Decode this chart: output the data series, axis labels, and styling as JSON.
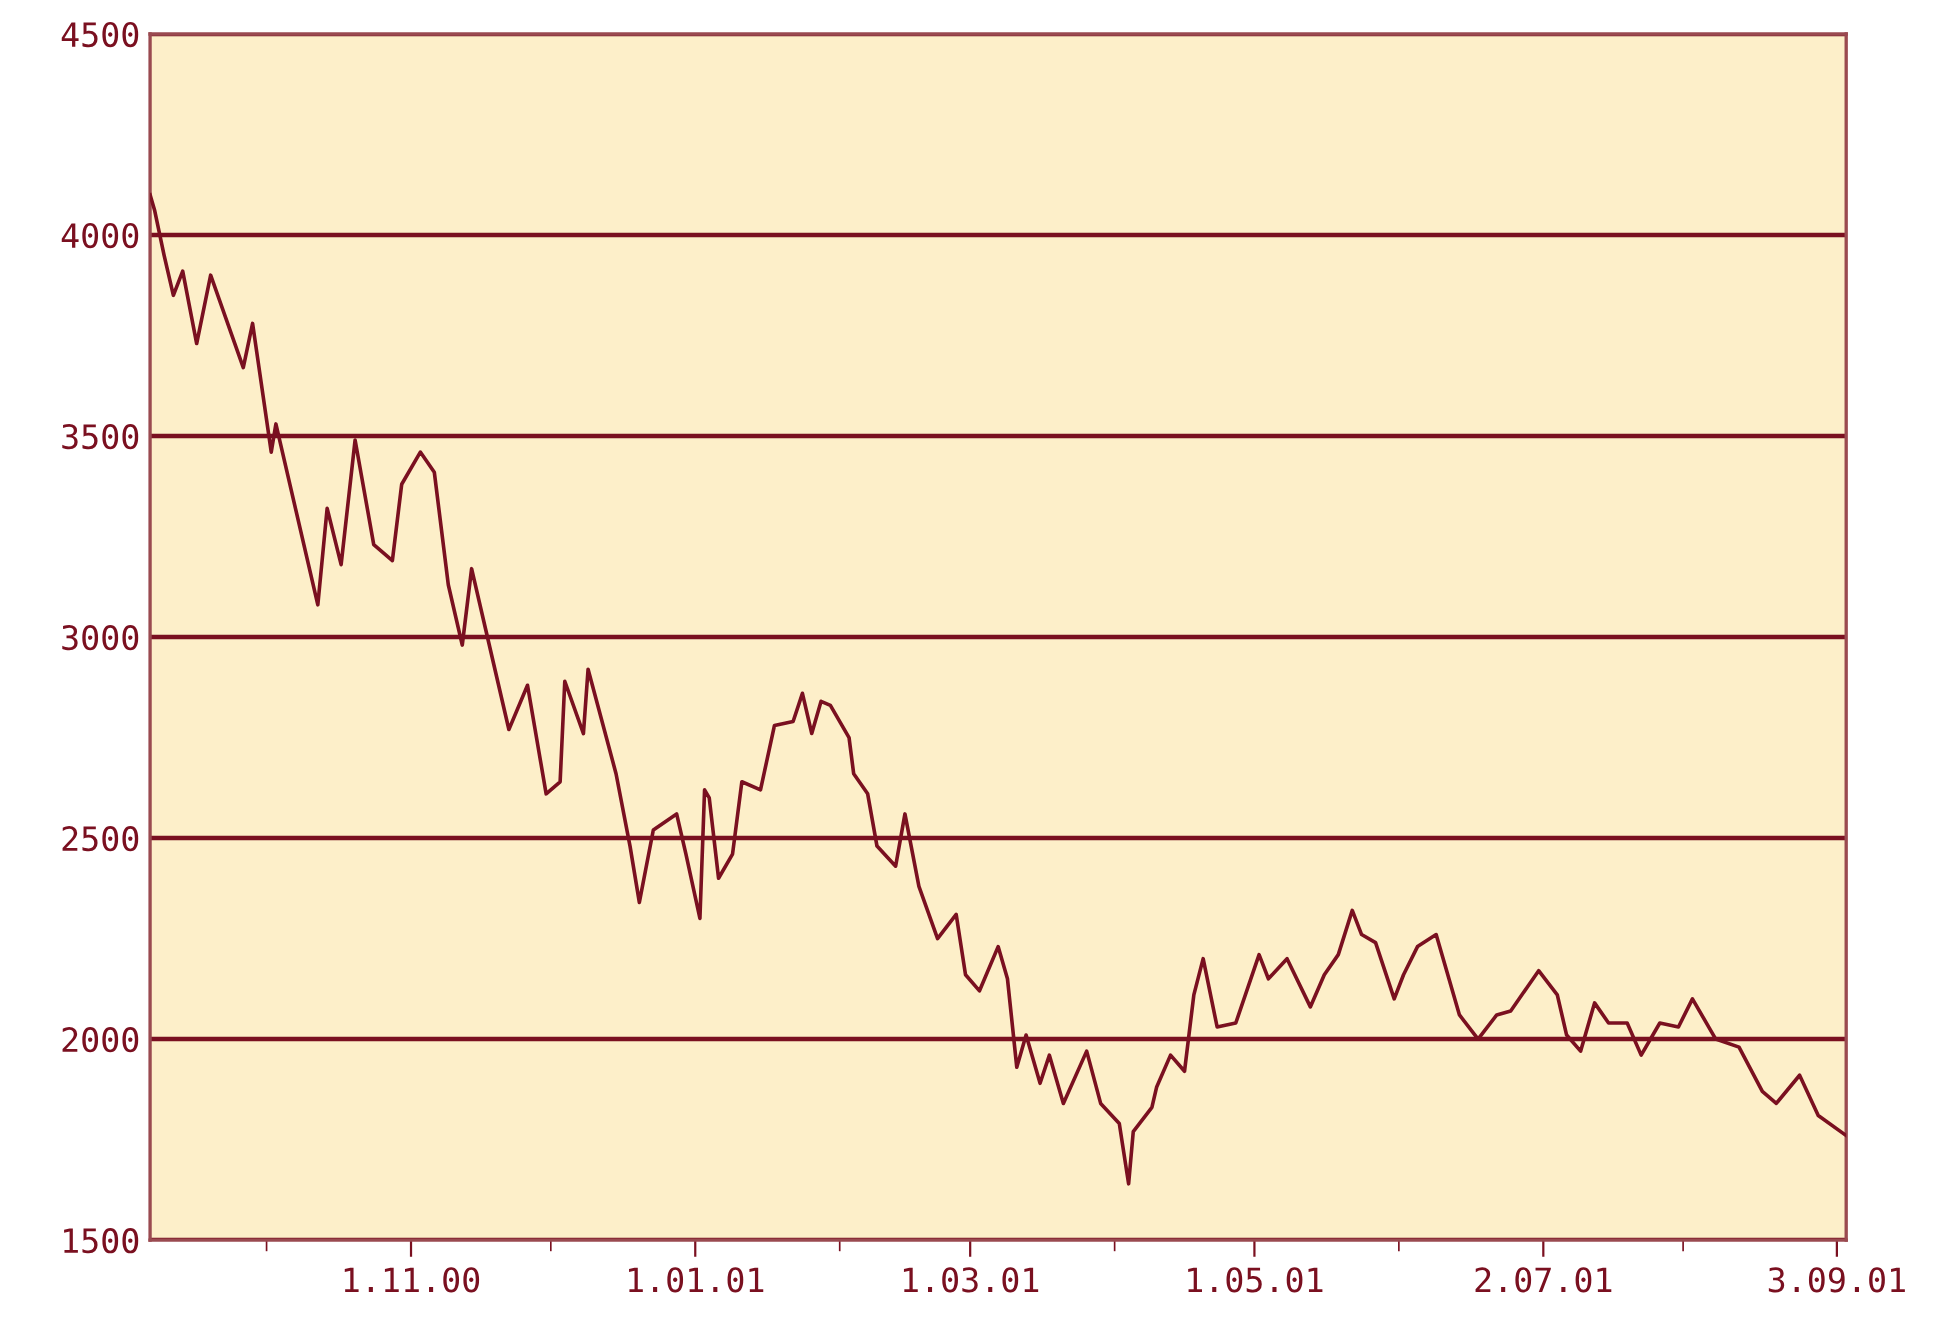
{
  "chart_data": {
    "type": "line",
    "x": [
      "2000-09-06",
      "2000-09-07",
      "2000-09-09",
      "2000-09-11",
      "2000-09-13",
      "2000-09-16",
      "2000-09-19",
      "2000-09-26",
      "2000-09-28",
      "2000-10-02",
      "2000-10-03",
      "2000-10-12",
      "2000-10-14",
      "2000-10-17",
      "2000-10-20",
      "2000-10-24",
      "2000-10-28",
      "2000-10-30",
      "2000-11-03",
      "2000-11-06",
      "2000-11-09",
      "2000-11-12",
      "2000-11-14",
      "2000-11-17",
      "2000-11-22",
      "2000-11-26",
      "2000-11-30",
      "2000-12-03",
      "2000-12-04",
      "2000-12-08",
      "2000-12-09",
      "2000-12-15",
      "2000-12-18",
      "2000-12-20",
      "2000-12-23",
      "2000-12-28",
      "2000-12-30",
      "2001-01-02",
      "2001-01-03",
      "2001-01-04",
      "2001-01-06",
      "2001-01-09",
      "2001-01-11",
      "2001-01-15",
      "2001-01-18",
      "2001-01-22",
      "2001-01-24",
      "2001-01-26",
      "2001-01-28",
      "2001-01-30",
      "2001-02-03",
      "2001-02-04",
      "2001-02-07",
      "2001-02-09",
      "2001-02-13",
      "2001-02-15",
      "2001-02-18",
      "2001-02-22",
      "2001-02-26",
      "2001-02-28",
      "2001-03-03",
      "2001-03-07",
      "2001-03-09",
      "2001-03-11",
      "2001-03-13",
      "2001-03-16",
      "2001-03-18",
      "2001-03-21",
      "2001-03-26",
      "2001-03-29",
      "2001-04-02",
      "2001-04-04",
      "2001-04-05",
      "2001-04-09",
      "2001-04-10",
      "2001-04-13",
      "2001-04-16",
      "2001-04-18",
      "2001-04-20",
      "2001-04-23",
      "2001-04-27",
      "2001-05-02",
      "2001-05-04",
      "2001-05-08",
      "2001-05-13",
      "2001-05-16",
      "2001-05-19",
      "2001-05-22",
      "2001-05-24",
      "2001-05-27",
      "2001-05-31",
      "2001-06-02",
      "2001-06-05",
      "2001-06-09",
      "2001-06-14",
      "2001-06-18",
      "2001-06-22",
      "2001-06-25",
      "2001-07-01",
      "2001-07-05",
      "2001-07-07",
      "2001-07-10",
      "2001-07-13",
      "2001-07-16",
      "2001-07-20",
      "2001-07-23",
      "2001-07-27",
      "2001-07-31",
      "2001-08-03",
      "2001-08-08",
      "2001-08-13",
      "2001-08-18",
      "2001-08-21",
      "2001-08-26",
      "2001-08-30",
      "2001-09-05"
    ],
    "series": [
      {
        "color": "#7a1020",
        "values": [
          4100,
          4060,
          3950,
          3850,
          3910,
          3730,
          3900,
          3670,
          3780,
          3460,
          3530,
          3080,
          3320,
          3180,
          3490,
          3230,
          3190,
          3380,
          3460,
          3410,
          3130,
          2980,
          3170,
          3020,
          2770,
          2880,
          2610,
          2640,
          2890,
          2760,
          2920,
          2660,
          2480,
          2340,
          2520,
          2560,
          2460,
          2300,
          2620,
          2600,
          2400,
          2460,
          2640,
          2620,
          2780,
          2790,
          2860,
          2760,
          2840,
          2830,
          2750,
          2660,
          2610,
          2480,
          2430,
          2560,
          2380,
          2250,
          2310,
          2160,
          2120,
          2230,
          2150,
          1930,
          2010,
          1890,
          1960,
          1840,
          1970,
          1840,
          1790,
          1640,
          1770,
          1830,
          1880,
          1960,
          1920,
          2110,
          2200,
          2030,
          2040,
          2210,
          2150,
          2200,
          2080,
          2160,
          2210,
          2320,
          2260,
          2240,
          2100,
          2160,
          2230,
          2260,
          2060,
          2000,
          2060,
          2070,
          2170,
          2110,
          2010,
          1970,
          2090,
          2040,
          2040,
          1960,
          2040,
          2030,
          2100,
          2000,
          1980,
          1870,
          1840,
          1910,
          1810,
          1760
        ]
      }
    ],
    "xlim": [
      "2000-09-06",
      "2001-09-05"
    ],
    "xticks": [
      {
        "value": "2000-10-01",
        "label": null
      },
      {
        "value": "2000-11-01",
        "label": "1.11.00"
      },
      {
        "value": "2000-12-01",
        "label": null
      },
      {
        "value": "2001-01-01",
        "label": "1.01.01"
      },
      {
        "value": "2001-02-01",
        "label": null
      },
      {
        "value": "2001-03-01",
        "label": "1.03.01"
      },
      {
        "value": "2001-04-01",
        "label": null
      },
      {
        "value": "2001-05-01",
        "label": "1.05.01"
      },
      {
        "value": "2001-06-01",
        "label": null
      },
      {
        "value": "2001-07-02",
        "label": "2.07.01"
      },
      {
        "value": "2001-08-01",
        "label": null
      },
      {
        "value": "2001-09-03",
        "label": "3.09.01"
      }
    ],
    "ylim": [
      1500,
      4500
    ],
    "yticks": [
      1500,
      2000,
      2500,
      3000,
      3500,
      4000,
      4500
    ],
    "grid": "y",
    "marker": "none",
    "line_style": "solid"
  }
}
